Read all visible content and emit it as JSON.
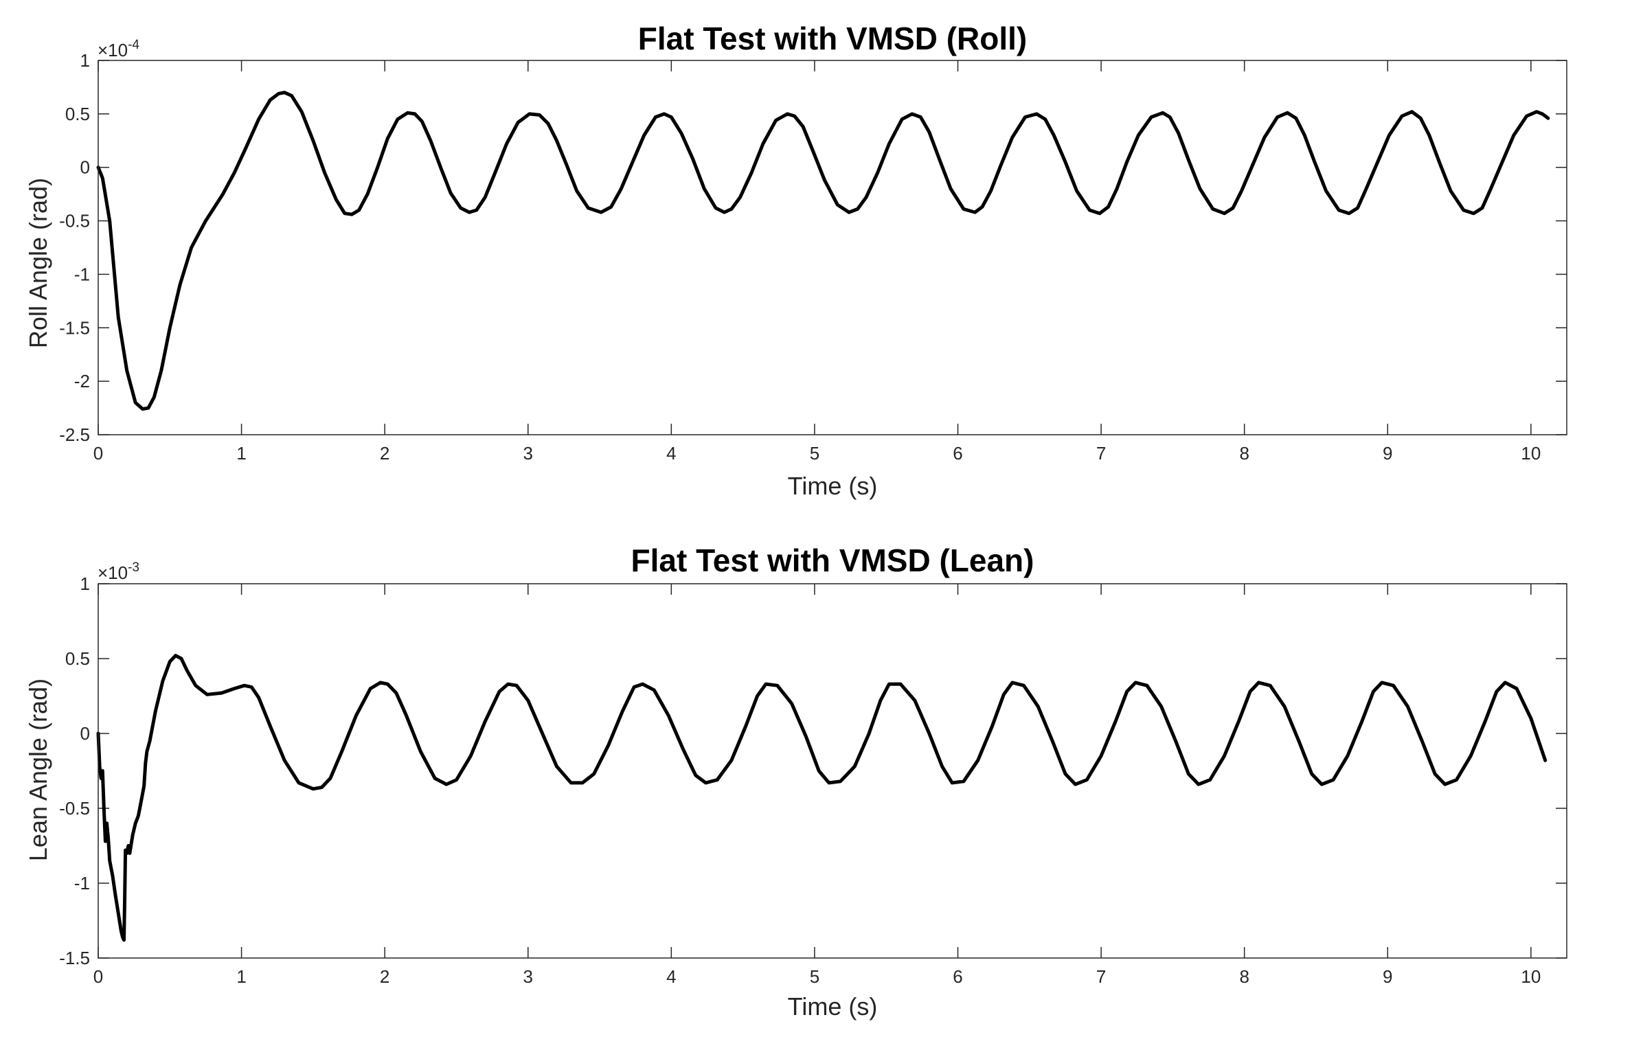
{
  "chart_data": [
    {
      "type": "line",
      "title": "Flat Test with VMSD (Roll)",
      "xlabel": "Time (s)",
      "ylabel": "Roll Angle (rad)",
      "y_multiplier_label": "×10",
      "y_multiplier_exp": "-4",
      "xlim": [
        0,
        10.25
      ],
      "ylim": [
        -2.5,
        1
      ],
      "x_ticks": [
        "0",
        "1",
        "2",
        "3",
        "4",
        "5",
        "6",
        "7",
        "8",
        "9",
        "10"
      ],
      "y_ticks": [
        "1",
        "0.5",
        "0",
        "-0.5",
        "-1",
        "-1.5",
        "-2",
        "-2.5"
      ],
      "line_color": "#000000",
      "grid": false,
      "series": [
        {
          "x": [
            0,
            0.03,
            0.08,
            0.14,
            0.2,
            0.26,
            0.31,
            0.35,
            0.39,
            0.44,
            0.5,
            0.57,
            0.65,
            0.75,
            0.87,
            0.95,
            1.03,
            1.12,
            1.2,
            1.26,
            1.3,
            1.35,
            1.42,
            1.5,
            1.58,
            1.66,
            1.72,
            1.77,
            1.82,
            1.88,
            1.95,
            2.02,
            2.09,
            2.16,
            2.21,
            2.26,
            2.32,
            2.39,
            2.46,
            2.53,
            2.59,
            2.64,
            2.7,
            2.77,
            2.85,
            2.93,
            3.01,
            3.08,
            3.14,
            3.2,
            3.27,
            3.34,
            3.42,
            3.51,
            3.58,
            3.65,
            3.73,
            3.81,
            3.89,
            3.95,
            4.0,
            4.07,
            4.15,
            4.23,
            4.31,
            4.37,
            4.42,
            4.48,
            4.56,
            4.64,
            4.73,
            4.81,
            4.86,
            4.92,
            4.99,
            5.07,
            5.16,
            5.24,
            5.3,
            5.36,
            5.44,
            5.52,
            5.61,
            5.68,
            5.74,
            5.8,
            5.87,
            5.95,
            6.04,
            6.12,
            6.17,
            6.23,
            6.3,
            6.38,
            6.47,
            6.55,
            6.61,
            6.67,
            6.75,
            6.83,
            6.92,
            6.99,
            7.05,
            7.11,
            7.18,
            7.26,
            7.35,
            7.43,
            7.48,
            7.54,
            7.61,
            7.69,
            7.78,
            7.86,
            7.92,
            7.98,
            8.06,
            8.14,
            8.23,
            8.3,
            8.36,
            8.42,
            8.49,
            8.57,
            8.66,
            8.73,
            8.79,
            8.85,
            8.93,
            9.01,
            9.1,
            9.17,
            9.23,
            9.29,
            9.36,
            9.44,
            9.53,
            9.6,
            9.66,
            9.72,
            9.8,
            9.88,
            9.97,
            10.04,
            10.08,
            10.12
          ],
          "y": [
            0,
            -0.1,
            -0.5,
            -1.4,
            -1.9,
            -2.2,
            -2.26,
            -2.25,
            -2.15,
            -1.9,
            -1.5,
            -1.1,
            -0.75,
            -0.5,
            -0.25,
            -0.05,
            0.18,
            0.45,
            0.63,
            0.69,
            0.7,
            0.67,
            0.52,
            0.25,
            -0.05,
            -0.3,
            -0.43,
            -0.44,
            -0.4,
            -0.25,
            0.0,
            0.27,
            0.45,
            0.51,
            0.5,
            0.43,
            0.25,
            0.0,
            -0.24,
            -0.38,
            -0.42,
            -0.4,
            -0.28,
            -0.05,
            0.22,
            0.42,
            0.5,
            0.49,
            0.41,
            0.25,
            0.02,
            -0.22,
            -0.38,
            -0.42,
            -0.37,
            -0.2,
            0.05,
            0.3,
            0.47,
            0.5,
            0.47,
            0.32,
            0.08,
            -0.2,
            -0.38,
            -0.42,
            -0.39,
            -0.28,
            -0.05,
            0.22,
            0.44,
            0.5,
            0.48,
            0.38,
            0.15,
            -0.12,
            -0.35,
            -0.42,
            -0.39,
            -0.28,
            -0.05,
            0.22,
            0.45,
            0.5,
            0.47,
            0.33,
            0.08,
            -0.2,
            -0.39,
            -0.42,
            -0.37,
            -0.22,
            0.02,
            0.28,
            0.47,
            0.5,
            0.45,
            0.3,
            0.05,
            -0.22,
            -0.4,
            -0.43,
            -0.37,
            -0.2,
            0.05,
            0.3,
            0.47,
            0.51,
            0.47,
            0.32,
            0.07,
            -0.2,
            -0.39,
            -0.43,
            -0.38,
            -0.22,
            0.03,
            0.28,
            0.47,
            0.51,
            0.46,
            0.3,
            0.05,
            -0.22,
            -0.4,
            -0.43,
            -0.38,
            -0.2,
            0.05,
            0.3,
            0.48,
            0.52,
            0.46,
            0.3,
            0.05,
            -0.22,
            -0.4,
            -0.43,
            -0.38,
            -0.2,
            0.05,
            0.3,
            0.48,
            0.52,
            0.5,
            0.46
          ]
        }
      ]
    },
    {
      "type": "line",
      "title": "Flat Test with VMSD (Lean)",
      "xlabel": "Time (s)",
      "ylabel": "Lean Angle (rad)",
      "y_multiplier_label": "×10",
      "y_multiplier_exp": "-3",
      "xlim": [
        0,
        10.25
      ],
      "ylim": [
        -1.5,
        1
      ],
      "x_ticks": [
        "0",
        "1",
        "2",
        "3",
        "4",
        "5",
        "6",
        "7",
        "8",
        "9",
        "10"
      ],
      "y_ticks": [
        "1",
        "0.5",
        "0",
        "-0.5",
        "-1",
        "-1.5"
      ],
      "line_color": "#000000",
      "grid": false,
      "series": [
        {
          "x": [
            0,
            0.01,
            0.02,
            0.03,
            0.04,
            0.05,
            0.06,
            0.07,
            0.08,
            0.09,
            0.1,
            0.12,
            0.14,
            0.16,
            0.17,
            0.18,
            0.185,
            0.19,
            0.2,
            0.21,
            0.22,
            0.24,
            0.26,
            0.28,
            0.3,
            0.32,
            0.33,
            0.34,
            0.36,
            0.4,
            0.45,
            0.5,
            0.54,
            0.58,
            0.62,
            0.68,
            0.76,
            0.86,
            0.95,
            1.02,
            1.07,
            1.12,
            1.2,
            1.3,
            1.4,
            1.5,
            1.56,
            1.62,
            1.7,
            1.8,
            1.9,
            1.97,
            2.02,
            2.08,
            2.15,
            2.25,
            2.35,
            2.43,
            2.5,
            2.6,
            2.7,
            2.8,
            2.86,
            2.92,
            3.0,
            3.1,
            3.2,
            3.3,
            3.38,
            3.46,
            3.56,
            3.66,
            3.74,
            3.8,
            3.88,
            3.98,
            4.08,
            4.17,
            4.24,
            4.32,
            4.42,
            4.52,
            4.6,
            4.66,
            4.74,
            4.84,
            4.94,
            5.03,
            5.1,
            5.18,
            5.28,
            5.38,
            5.46,
            5.52,
            5.6,
            5.7,
            5.8,
            5.89,
            5.96,
            6.04,
            6.14,
            6.24,
            6.32,
            6.38,
            6.46,
            6.56,
            6.66,
            6.75,
            6.82,
            6.9,
            7.0,
            7.1,
            7.18,
            7.24,
            7.32,
            7.42,
            7.52,
            7.61,
            7.68,
            7.76,
            7.86,
            7.96,
            8.04,
            8.1,
            8.18,
            8.28,
            8.38,
            8.47,
            8.54,
            8.62,
            8.72,
            8.82,
            8.9,
            8.96,
            9.04,
            9.14,
            9.24,
            9.33,
            9.4,
            9.48,
            9.58,
            9.68,
            9.76,
            9.82,
            9.9,
            10.0,
            10.1
          ],
          "y": [
            0,
            -0.22,
            -0.3,
            -0.25,
            -0.5,
            -0.72,
            -0.6,
            -0.7,
            -0.85,
            -0.9,
            -0.95,
            -1.08,
            -1.2,
            -1.32,
            -1.36,
            -1.38,
            -1.1,
            -0.78,
            -0.8,
            -0.75,
            -0.8,
            -0.68,
            -0.6,
            -0.55,
            -0.45,
            -0.35,
            -0.2,
            -0.12,
            -0.05,
            0.15,
            0.35,
            0.48,
            0.52,
            0.5,
            0.42,
            0.32,
            0.26,
            0.27,
            0.3,
            0.32,
            0.31,
            0.24,
            0.05,
            -0.18,
            -0.33,
            -0.37,
            -0.36,
            -0.3,
            -0.12,
            0.12,
            0.3,
            0.34,
            0.33,
            0.27,
            0.12,
            -0.12,
            -0.3,
            -0.34,
            -0.31,
            -0.15,
            0.08,
            0.28,
            0.33,
            0.32,
            0.22,
            0.0,
            -0.22,
            -0.33,
            -0.33,
            -0.27,
            -0.08,
            0.15,
            0.31,
            0.33,
            0.29,
            0.12,
            -0.1,
            -0.28,
            -0.33,
            -0.31,
            -0.18,
            0.05,
            0.25,
            0.33,
            0.32,
            0.2,
            -0.02,
            -0.25,
            -0.33,
            -0.32,
            -0.22,
            0.0,
            0.22,
            0.33,
            0.33,
            0.22,
            0.0,
            -0.22,
            -0.33,
            -0.32,
            -0.18,
            0.05,
            0.26,
            0.34,
            0.32,
            0.18,
            -0.05,
            -0.27,
            -0.34,
            -0.31,
            -0.15,
            0.08,
            0.28,
            0.34,
            0.32,
            0.18,
            -0.05,
            -0.27,
            -0.34,
            -0.31,
            -0.15,
            0.08,
            0.28,
            0.34,
            0.32,
            0.18,
            -0.05,
            -0.27,
            -0.34,
            -0.31,
            -0.15,
            0.08,
            0.28,
            0.34,
            0.32,
            0.18,
            -0.05,
            -0.27,
            -0.34,
            -0.31,
            -0.15,
            0.08,
            0.28,
            0.34,
            0.3,
            0.1,
            -0.18
          ]
        }
      ]
    }
  ]
}
